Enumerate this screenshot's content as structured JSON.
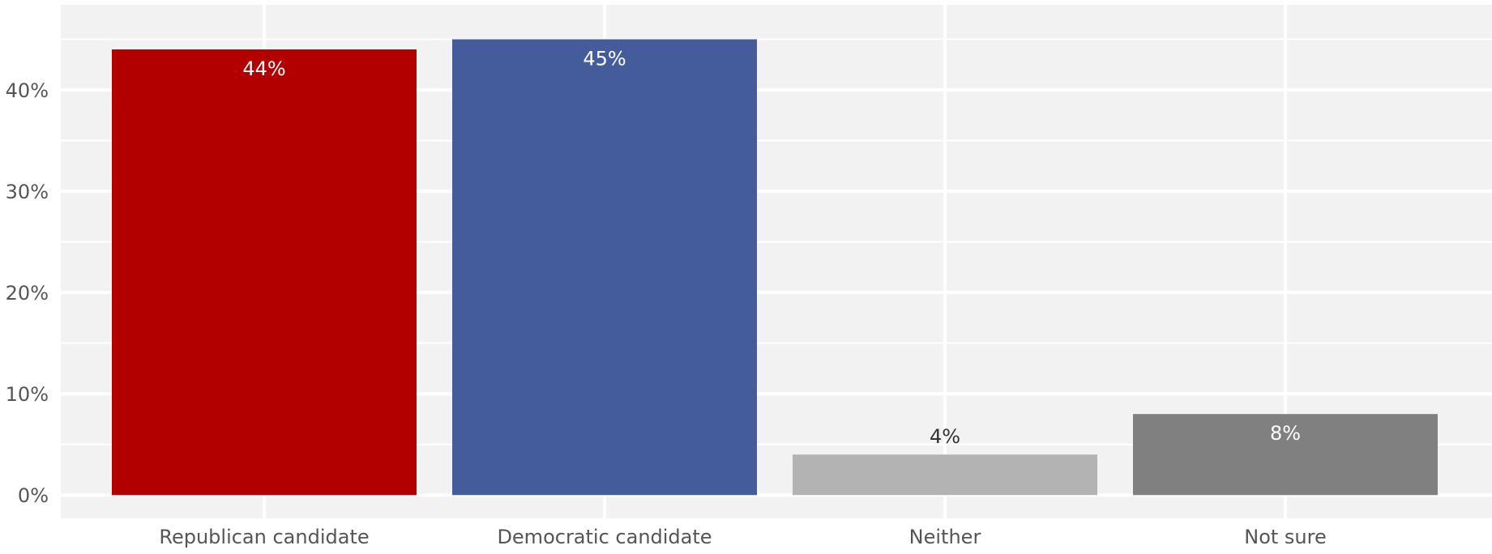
{
  "chart_data": {
    "type": "bar",
    "title": "",
    "xlabel": "",
    "ylabel": "",
    "categories": [
      "Republican candidate",
      "Democratic candidate",
      "Neither",
      "Not sure"
    ],
    "values": [
      44,
      45,
      4,
      8
    ],
    "data_labels": [
      "44%",
      "45%",
      "4%",
      "8%"
    ],
    "bar_colors": [
      "#b20000",
      "#445c9b",
      "#b3b3b3",
      "#808080"
    ],
    "label_colors": [
      "#ffffff",
      "#ffffff",
      "#333333",
      "#ffffff"
    ],
    "y_ticks": [
      0,
      10,
      20,
      30,
      40
    ],
    "y_tick_labels": [
      "0%",
      "10%",
      "20%",
      "30%",
      "40%"
    ],
    "ylim": [
      -2.3,
      48.4
    ],
    "grid": true,
    "legend": "none",
    "panel_background": "#f2f2f2",
    "gridline_color": "#ffffff",
    "axis_text_color": "#555555"
  }
}
